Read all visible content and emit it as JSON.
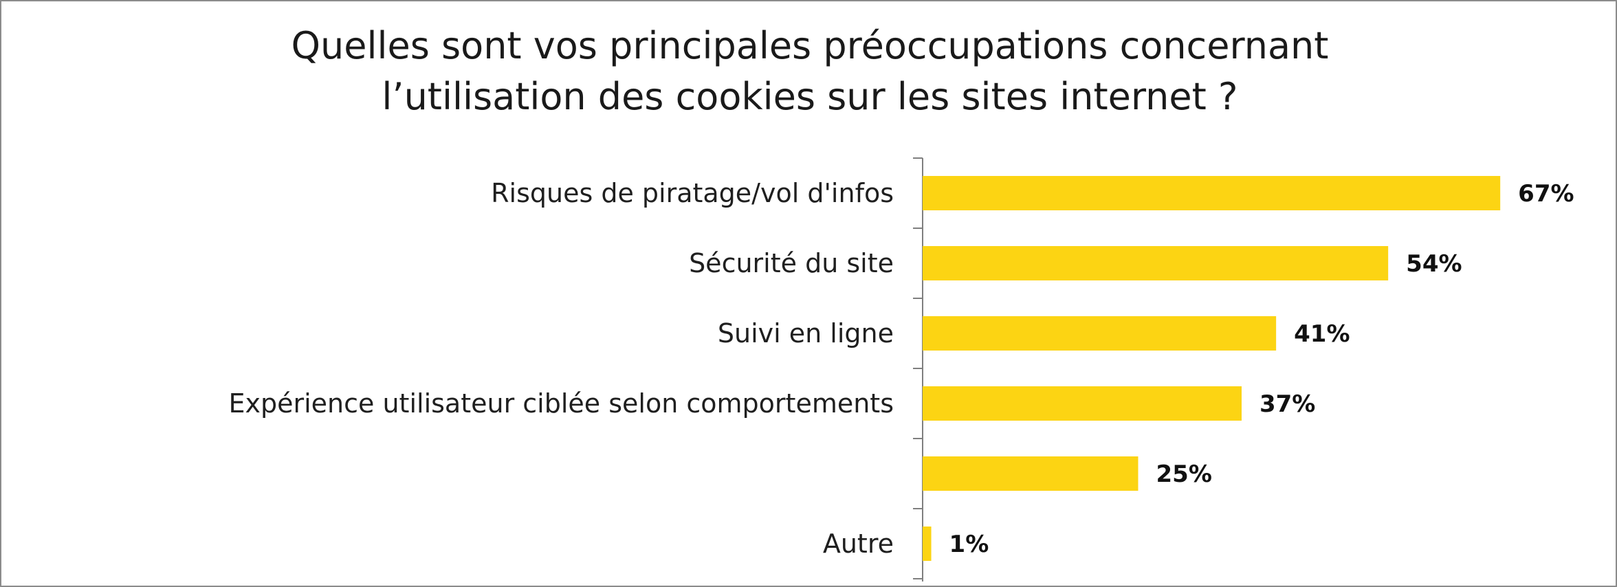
{
  "title": {
    "line1": "Quelles sont vos principales préoccupations concernant",
    "line2": "l’utilisation des cookies sur les sites internet ?"
  },
  "colors": {
    "bar": "#FCD413",
    "axis": "#7f7f7f",
    "text": "#1f1f1f"
  },
  "chart_data": {
    "type": "bar",
    "orientation": "horizontal",
    "title": "Quelles sont vos principales préoccupations concernant l’utilisation des cookies sur les sites internet ?",
    "categories": [
      "Risques de piratage/vol d'infos",
      "Sécurité du site",
      "Suivi en ligne",
      "Expérience utilisateur ciblée selon comportements",
      "",
      "Autre"
    ],
    "values": [
      67,
      54,
      41,
      37,
      25,
      1
    ],
    "value_labels": [
      "67%",
      "54%",
      "41%",
      "37%",
      "25%",
      "1%"
    ],
    "unit": "%",
    "xlim": [
      0,
      100
    ],
    "grid": false,
    "legend": "none"
  }
}
